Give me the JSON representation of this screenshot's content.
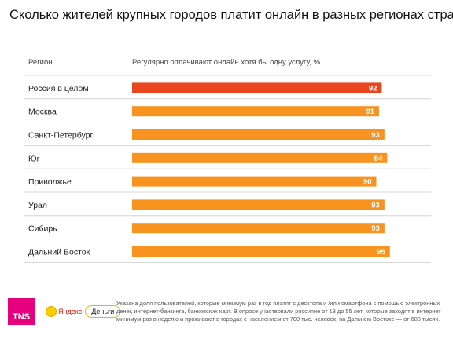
{
  "header": {
    "title": "Сколько жителей крупных городов платит онлайн в разных регионах страны",
    "col_region": "Регион",
    "col_metric": "Регулярно оплачивают онлайн хотя бы одну услугу, %"
  },
  "chart_data": {
    "type": "bar",
    "orientation": "horizontal",
    "categories": [
      "Россия в целом",
      "Москва",
      "Санкт-Петербург",
      "Юг",
      "Приволжье",
      "Урал",
      "Сибирь",
      "Дальний Восток"
    ],
    "values": [
      92,
      91,
      93,
      94,
      90,
      93,
      93,
      95
    ],
    "highlight_color": "#e8461e",
    "bar_color": "#f7931e",
    "separator_color": "#cccccc",
    "grid": false
  },
  "footer": {
    "tns_logo": "TNS",
    "yandex_word": "Яндекс",
    "dengi_label": "Деньги",
    "note": "Указана доля пользователей, которые минимум раз в год платят с десктопа и /или смартфона с помощью электронных денег, интернет-банкинга, банковских карт. В опросе участвовали россияне от 18 до 55 лет, которые заходят в интернет минимум раз в неделю и проживают в городах с населением от 700 тыс. человек, на Дальнем Востоке — от 600 тысяч."
  }
}
